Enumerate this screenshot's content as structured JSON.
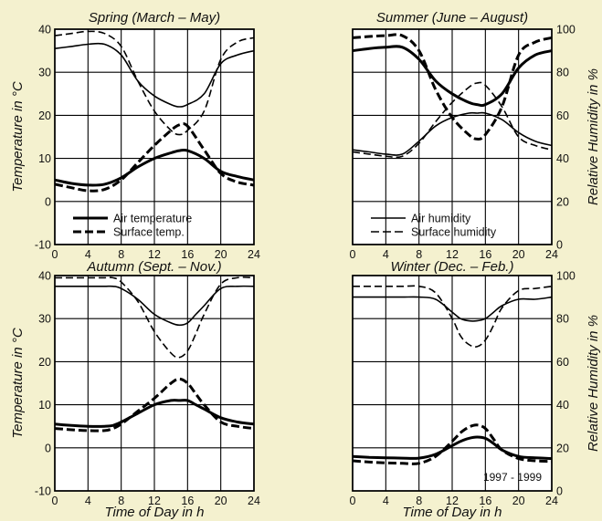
{
  "figure": {
    "x_label": "Time of Day in h",
    "y_label_left": "Temperature in °C",
    "y_label_right": "Relative Humidity in %",
    "note": "1997 - 1999"
  },
  "chart_data": [
    {
      "type": "line",
      "title": "Spring (March – May)",
      "xlim": [
        0,
        24
      ],
      "ylim_temperature": [
        -10,
        40
      ],
      "ylim_humidity": [
        0,
        100
      ],
      "x_ticks": [
        "0",
        "4",
        "8",
        "12",
        "16",
        "20",
        "24"
      ],
      "y_ticks_left": [
        "-10",
        "0",
        "10",
        "20",
        "30",
        "40"
      ],
      "grid": true,
      "legend": {
        "position": "bottom",
        "entries": [
          "Air temperature",
          "Surface temp."
        ]
      },
      "series": [
        {
          "name": "Air temperature",
          "axis": "temperature",
          "style": "solid",
          "x": [
            0,
            2,
            4,
            6,
            8,
            10,
            12,
            14,
            15,
            16,
            18,
            20,
            22,
            24
          ],
          "y": [
            5,
            4.2,
            3.8,
            4,
            5.5,
            8,
            10,
            11.3,
            11.8,
            11.8,
            10,
            7,
            5.8,
            5
          ]
        },
        {
          "name": "Surface temp.",
          "axis": "temperature",
          "style": "dashed",
          "x": [
            0,
            2,
            4,
            6,
            8,
            10,
            12,
            14,
            15,
            16,
            18,
            20,
            22,
            24
          ],
          "y": [
            4,
            3.2,
            2.5,
            2.8,
            5,
            9,
            13,
            16.5,
            17.8,
            17.5,
            12,
            6.5,
            4.5,
            3.8
          ]
        },
        {
          "name": "Air humidity",
          "axis": "humidity",
          "style": "solid",
          "x": [
            0,
            2,
            4,
            6,
            8,
            10,
            12,
            14,
            15,
            16,
            18,
            20,
            22,
            24
          ],
          "y": [
            91,
            92,
            93,
            93,
            88,
            76,
            69,
            65,
            64,
            65,
            70,
            84,
            88,
            90
          ]
        },
        {
          "name": "Surface humidity",
          "axis": "humidity",
          "style": "dashed",
          "x": [
            0,
            2,
            4,
            6,
            8,
            10,
            12,
            14,
            15,
            16,
            18,
            20,
            22,
            24
          ],
          "y": [
            97,
            98,
            99,
            98,
            92,
            76,
            62,
            53,
            51,
            53,
            62,
            86,
            94,
            96
          ]
        }
      ]
    },
    {
      "type": "line",
      "title": "Summer (June – August)",
      "xlim": [
        0,
        24
      ],
      "ylim_temperature": [
        -10,
        40
      ],
      "ylim_humidity": [
        0,
        100
      ],
      "x_ticks": [
        "0",
        "4",
        "8",
        "12",
        "16",
        "20",
        "24"
      ],
      "y_ticks_right": [
        "0",
        "20",
        "40",
        "60",
        "80",
        "100"
      ],
      "grid": true,
      "legend": {
        "position": "bottom",
        "entries": [
          "Air humidity",
          "Surface humidity"
        ]
      },
      "series": [
        {
          "name": "Air temperature",
          "axis": "temperature",
          "style": "solid",
          "x": [
            0,
            2,
            4,
            6,
            8,
            10,
            12,
            14,
            15,
            16,
            18,
            20,
            22,
            24
          ],
          "y": [
            35,
            35.5,
            35.8,
            35.8,
            33,
            28,
            25,
            23,
            22.5,
            22.5,
            25,
            31,
            34,
            35
          ]
        },
        {
          "name": "Surface temp.",
          "axis": "temperature",
          "style": "dashed",
          "x": [
            0,
            2,
            4,
            6,
            8,
            10,
            12,
            14,
            15,
            16,
            18,
            20,
            22,
            24
          ],
          "y": [
            38,
            38.3,
            38.5,
            38.5,
            35,
            26,
            19.5,
            15.5,
            14.5,
            15.5,
            22,
            34,
            37,
            38
          ]
        },
        {
          "name": "Air humidity",
          "axis": "humidity",
          "style": "solid",
          "x": [
            0,
            2,
            4,
            6,
            8,
            10,
            12,
            14,
            15,
            16,
            18,
            20,
            22,
            24
          ],
          "y": [
            44,
            43,
            42,
            42,
            48,
            55,
            59,
            61,
            61,
            61,
            58,
            52,
            48,
            46
          ]
        },
        {
          "name": "Surface humidity",
          "axis": "humidity",
          "style": "dashed",
          "x": [
            0,
            2,
            4,
            6,
            8,
            10,
            12,
            14,
            15,
            16,
            18,
            20,
            22,
            24
          ],
          "y": [
            43,
            42,
            41,
            41,
            47,
            57,
            66,
            73,
            75,
            74,
            64,
            50,
            46,
            44
          ]
        }
      ]
    },
    {
      "type": "line",
      "title": "Autumn (Sept. – Nov.)",
      "xlim": [
        0,
        24
      ],
      "ylim_temperature": [
        -10,
        40
      ],
      "ylim_humidity": [
        0,
        100
      ],
      "x_ticks": [
        "0",
        "4",
        "8",
        "12",
        "16",
        "20",
        "24"
      ],
      "y_ticks_left": [
        "-10",
        "0",
        "10",
        "20",
        "30",
        "40"
      ],
      "grid": true,
      "series": [
        {
          "name": "Air temperature",
          "axis": "temperature",
          "style": "solid",
          "x": [
            0,
            2,
            4,
            6,
            7,
            8,
            10,
            12,
            14,
            15,
            16,
            17,
            18,
            20,
            22,
            24
          ],
          "y": [
            5.5,
            5.2,
            5,
            5,
            5.2,
            6,
            8,
            10,
            11,
            11,
            11,
            10,
            9,
            7,
            6,
            5.5
          ]
        },
        {
          "name": "Surface temp.",
          "axis": "temperature",
          "style": "dashed",
          "x": [
            0,
            2,
            4,
            6,
            7,
            8,
            10,
            12,
            14,
            15,
            16,
            17,
            18,
            20,
            22,
            24
          ],
          "y": [
            4.5,
            4.2,
            4,
            4,
            4.5,
            5.5,
            8.5,
            11.5,
            15,
            16,
            15,
            12.5,
            10,
            6,
            5,
            4.5
          ]
        },
        {
          "name": "Air humidity",
          "axis": "humidity",
          "style": "solid",
          "x": [
            0,
            2,
            4,
            6,
            7,
            8,
            10,
            12,
            14,
            15,
            16,
            17,
            18,
            20,
            22,
            24
          ],
          "y": [
            95,
            95,
            95,
            95,
            95,
            94,
            89,
            82,
            78,
            77,
            78,
            82,
            86,
            94,
            95,
            95
          ]
        },
        {
          "name": "Surface humidity",
          "axis": "humidity",
          "style": "dashed",
          "x": [
            0,
            2,
            4,
            6,
            7,
            8,
            10,
            12,
            14,
            15,
            16,
            17,
            18,
            20,
            22,
            24
          ],
          "y": [
            99,
            99,
            99,
            99,
            99,
            97,
            88,
            74,
            64,
            62,
            65,
            73,
            82,
            96,
            99,
            99
          ]
        }
      ]
    },
    {
      "type": "line",
      "title": "Winter (Dec. – Feb.)",
      "xlim": [
        0,
        24
      ],
      "ylim_temperature": [
        -10,
        40
      ],
      "ylim_humidity": [
        0,
        100
      ],
      "x_ticks": [
        "0",
        "4",
        "8",
        "12",
        "16",
        "20",
        "24"
      ],
      "y_ticks_right": [
        "0",
        "20",
        "40",
        "60",
        "80",
        "100"
      ],
      "grid": true,
      "series": [
        {
          "name": "Air temperature",
          "axis": "temperature",
          "style": "solid",
          "x": [
            0,
            2,
            4,
            6,
            8,
            10,
            12,
            13,
            14,
            15,
            16,
            17,
            18,
            20,
            22,
            24
          ],
          "y": [
            -2,
            -2.2,
            -2.3,
            -2.4,
            -2.4,
            -1.5,
            0.5,
            1.5,
            2.2,
            2.5,
            2.2,
            1,
            -0.5,
            -2,
            -2.3,
            -2.5
          ]
        },
        {
          "name": "Surface temp.",
          "axis": "temperature",
          "style": "dashed",
          "x": [
            0,
            2,
            4,
            6,
            8,
            10,
            12,
            13,
            14,
            15,
            16,
            17,
            18,
            20,
            22,
            24
          ],
          "y": [
            -3,
            -3.3,
            -3.5,
            -3.6,
            -3.6,
            -2,
            1.5,
            3.5,
            4.8,
            5.3,
            4.5,
            2,
            -0.5,
            -2.5,
            -3,
            -3.2
          ]
        },
        {
          "name": "Air humidity",
          "axis": "humidity",
          "style": "solid",
          "x": [
            0,
            2,
            4,
            6,
            8,
            10,
            12,
            13,
            14,
            15,
            16,
            17,
            18,
            20,
            22,
            24
          ],
          "y": [
            90,
            90,
            90,
            90,
            90,
            89,
            83,
            80,
            79,
            79,
            80,
            83,
            86,
            89,
            89,
            90
          ]
        },
        {
          "name": "Surface humidity",
          "axis": "humidity",
          "style": "dashed",
          "x": [
            0,
            2,
            4,
            6,
            8,
            10,
            12,
            13,
            14,
            15,
            16,
            17,
            18,
            20,
            22,
            24
          ],
          "y": [
            95,
            95,
            95,
            95,
            95,
            92,
            80,
            72,
            68,
            67,
            70,
            77,
            85,
            93,
            94,
            95
          ]
        }
      ]
    }
  ]
}
